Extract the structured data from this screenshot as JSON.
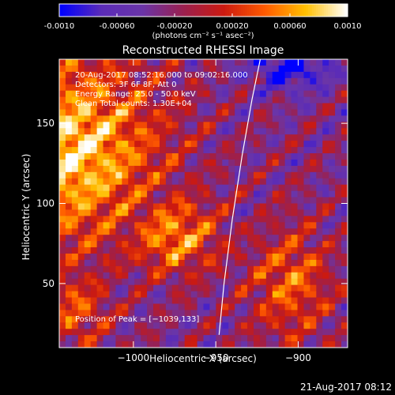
{
  "chart_data": {
    "type": "heatmap",
    "title": "Reconstructed RHESSI Image",
    "colorbar": {
      "range": [
        -0.001,
        0.001
      ],
      "ticks": [
        "-0.0010",
        "-0.00060",
        "-0.00020",
        "0.00020",
        "0.00060",
        "0.0010"
      ],
      "tick_values": [
        -0.001,
        -0.0006,
        -0.0002,
        0.0002,
        0.0006,
        0.001
      ],
      "unit_label": "(photons cm⁻² s⁻¹ asec⁻²)"
    },
    "xlabel": "Heliocentric X (arcsec)",
    "ylabel": "Heliocentric Y (arcsec)",
    "xlim": [
      -1045,
      -870
    ],
    "ylim": [
      10,
      190
    ],
    "xticks": [
      -1000,
      -950,
      -900
    ],
    "xtick_labels": [
      "−1000",
      "−950",
      "−900"
    ],
    "yticks": [
      50,
      100,
      150
    ],
    "ytick_labels": [
      "50",
      "100",
      "150"
    ],
    "annotations": [
      "20-Aug-2017 08:52:16.000 to 09:02:16.000",
      "Detectors: 3F 6F 8F, Att 0",
      "Energy Range: 25.0 - 50.0 keV",
      "Clean     Total counts: 1.30E+04"
    ],
    "peak_label": "Position of Peak = [−1039,133]",
    "peak": [
      -1039,
      133
    ],
    "limb_curve": [
      [
        -948,
        18
      ],
      [
        -945,
        50
      ],
      [
        -940,
        90
      ],
      [
        -934,
        130
      ],
      [
        -928,
        165
      ],
      [
        -923,
        190
      ]
    ],
    "timestamp": "21-Aug-2017 08:12"
  },
  "colors": {
    "background": "#000000",
    "text": "#ffffff",
    "limb": "#ffffff",
    "colormap": [
      "#0000ff",
      "#5a2bb8",
      "#6a35a8",
      "#9a2050",
      "#cc1a10",
      "#ff5a00",
      "#ffc000",
      "#ffffff"
    ]
  }
}
